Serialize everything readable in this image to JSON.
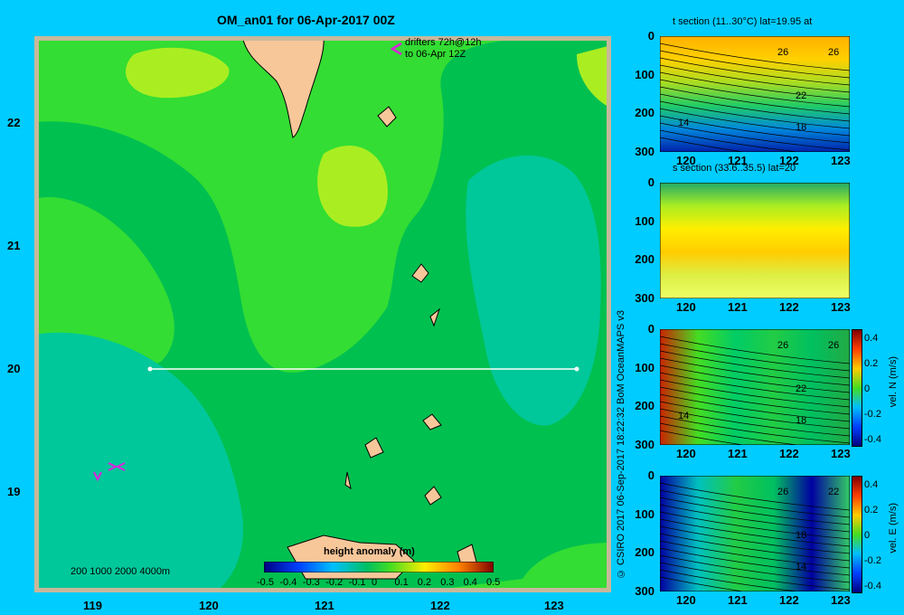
{
  "map": {
    "title": "OM_an01 for 06-Apr-2017 00Z",
    "drifters_line1": "drifters 72h@12h",
    "drifters_line2": "to 06-Apr 12Z",
    "lon_ticks": [
      "119",
      "120",
      "121",
      "122",
      "123"
    ],
    "lat_ticks": [
      "22",
      "21",
      "20",
      "19"
    ],
    "depth_legend": "200  1000  2000  4000m",
    "colorbar_title": "height anomaly (m)",
    "colorbar_ticks": [
      "-0.5",
      "-0.4",
      "-0.3",
      "-0.2",
      "-0.1",
      "0",
      "0.1",
      "0.2",
      "0.3",
      "0.4",
      "0.5"
    ],
    "credit": "© CSIRO 2017   06-Sep-2017 18:22:32 BoM OceanMAPS v3",
    "colors": {
      "bg": "#00ccff",
      "land": "#f7c79a",
      "border": "#c8b89a",
      "green_light": "#33dd33",
      "green_mid": "#00c050",
      "teal": "#00c89a",
      "yellowgreen": "#aaee22",
      "drifter": "#dd22dd"
    }
  },
  "panels": [
    {
      "title": "t section (11..30°C) lat=19.95 at",
      "y_ticks": [
        "0",
        "100",
        "200",
        "300"
      ],
      "x_ticks": [
        "120",
        "121",
        "122",
        "123"
      ],
      "contours": [
        "26",
        "26",
        "22",
        "18",
        "14"
      ]
    },
    {
      "title": "s section (33.6..35.5) lat=20",
      "y_ticks": [
        "0",
        "100",
        "200",
        "300"
      ],
      "x_ticks": [
        "120",
        "121",
        "122",
        "123"
      ]
    },
    {
      "title": "",
      "y_ticks": [
        "0",
        "100",
        "200",
        "300"
      ],
      "x_ticks": [
        "120",
        "121",
        "122",
        "123"
      ],
      "contours": [
        "26",
        "26",
        "22",
        "18",
        "14"
      ],
      "cbar_ticks": [
        "0.4",
        "0.2",
        "0",
        "-0.2",
        "-0.4"
      ],
      "cbar_label": "vel. N (m/s)"
    },
    {
      "title": "",
      "y_ticks": [
        "0",
        "100",
        "200",
        "300"
      ],
      "x_ticks": [
        "120",
        "121",
        "122",
        "123"
      ],
      "contours": [
        "26",
        "22",
        "18",
        "14"
      ],
      "cbar_ticks": [
        "0.4",
        "0.2",
        "0",
        "-0.2",
        "-0.4"
      ],
      "cbar_label": "vel. E (m/s)"
    }
  ]
}
